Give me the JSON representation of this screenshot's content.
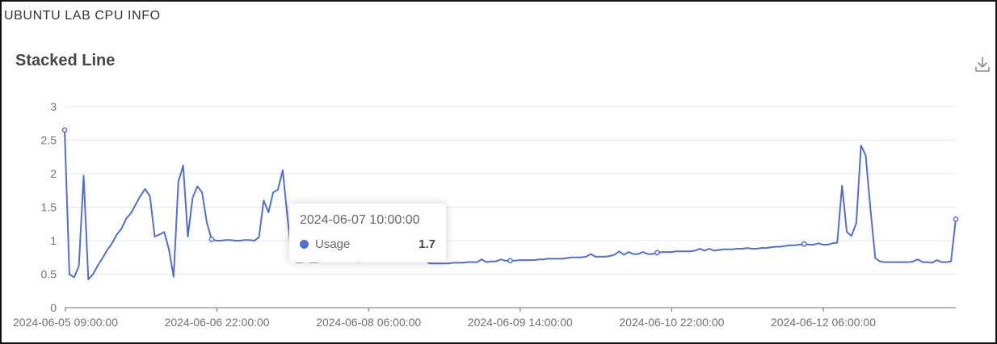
{
  "app": {
    "title": "UBUNTU LAB CPU INFO"
  },
  "toolbar": {
    "download_icon": "download-icon"
  },
  "colors": {
    "series": "#5470c6",
    "axis": "#6e7079",
    "grid": "#e0e6f1",
    "tick_text": "#6e7079"
  },
  "tooltip": {
    "time": "2024-06-07 10:00:00",
    "series_name": "Usage",
    "value": "1.7"
  },
  "chart_data": {
    "type": "line",
    "title": "Stacked Line",
    "xlabel": "",
    "ylabel": "",
    "ylim": [
      0,
      3
    ],
    "yticks": [
      "0",
      "0.5",
      "1",
      "1.5",
      "2",
      "2.5",
      "3"
    ],
    "xtick_labels": [
      "2024-06-05 09:00:00",
      "2024-06-06 22:00:00",
      "2024-06-08 06:00:00",
      "2024-06-09 14:00:00",
      "2024-06-10 22:00:00",
      "2024-06-12 06:00:00"
    ],
    "grid": true,
    "series": [
      {
        "name": "Usage",
        "values": [
          2.65,
          0.5,
          0.45,
          0.62,
          1.97,
          0.42,
          0.5,
          0.63,
          0.74,
          0.86,
          0.96,
          1.09,
          1.18,
          1.33,
          1.41,
          1.54,
          1.67,
          1.77,
          1.66,
          1.06,
          1.09,
          1.13,
          0.87,
          0.46,
          1.88,
          2.12,
          1.06,
          1.64,
          1.81,
          1.72,
          1.27,
          1.02,
          1.0,
          1.0,
          1.01,
          1.01,
          1.0,
          1.0,
          1.01,
          1.01,
          1.0,
          1.05,
          1.6,
          1.42,
          1.72,
          1.76,
          2.05,
          1.35,
          0.72,
          0.68,
          0.68,
          0.69,
          0.68,
          0.68,
          0.69,
          0.7,
          0.7,
          0.7,
          0.7,
          0.7,
          0.7,
          0.71,
          0.71,
          0.71,
          0.72,
          0.72,
          0.72,
          0.73,
          0.73,
          0.73,
          0.73,
          0.74,
          0.74,
          0.74,
          0.74,
          0.74,
          0.7,
          0.66,
          0.66,
          0.66,
          0.66,
          0.66,
          0.67,
          0.67,
          0.67,
          0.68,
          0.68,
          0.68,
          0.72,
          0.68,
          0.69,
          0.69,
          0.72,
          0.7,
          0.7,
          0.7,
          0.71,
          0.71,
          0.71,
          0.71,
          0.72,
          0.72,
          0.73,
          0.73,
          0.73,
          0.73,
          0.74,
          0.75,
          0.75,
          0.75,
          0.76,
          0.8,
          0.76,
          0.76,
          0.76,
          0.77,
          0.79,
          0.84,
          0.79,
          0.83,
          0.8,
          0.8,
          0.83,
          0.8,
          0.8,
          0.82,
          0.83,
          0.83,
          0.83,
          0.84,
          0.84,
          0.84,
          0.84,
          0.85,
          0.88,
          0.85,
          0.88,
          0.85,
          0.86,
          0.87,
          0.87,
          0.87,
          0.88,
          0.88,
          0.89,
          0.88,
          0.88,
          0.89,
          0.89,
          0.9,
          0.91,
          0.91,
          0.92,
          0.93,
          0.93,
          0.94,
          0.95,
          0.94,
          0.94,
          0.96,
          0.94,
          0.94,
          0.96,
          0.97,
          1.82,
          1.13,
          1.07,
          1.26,
          2.42,
          2.27,
          1.47,
          0.74,
          0.69,
          0.68,
          0.68,
          0.68,
          0.68,
          0.68,
          0.68,
          0.69,
          0.72,
          0.68,
          0.68,
          0.67,
          0.71,
          0.68,
          0.68,
          0.69,
          1.32
        ]
      }
    ]
  }
}
